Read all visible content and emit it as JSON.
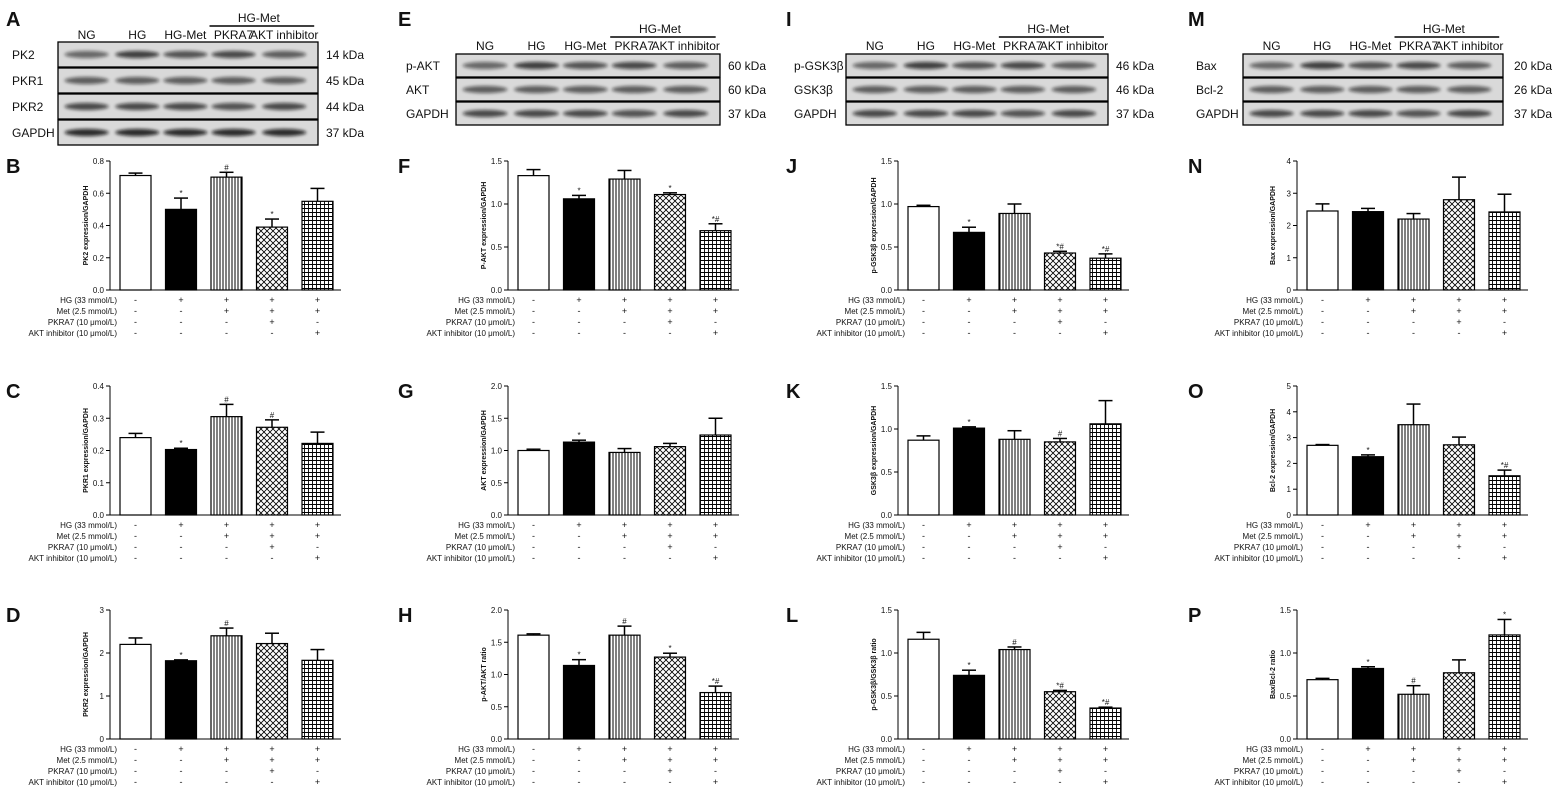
{
  "lanes": [
    "NG",
    "HG",
    "HG-Met",
    "PKRA7",
    "AKT inhibitor"
  ],
  "group_label": "HG-Met",
  "conditions": [
    "HG (33 mmol/L)",
    "Met (2.5 mmol/L)",
    "PKRA7 (10 μmol/L)",
    "AKT inhibitor (10 μmol/L)"
  ],
  "condition_signs": [
    [
      "-",
      "+",
      "+",
      "+",
      "+"
    ],
    [
      "-",
      "-",
      "+",
      "+",
      "+"
    ],
    [
      "-",
      "-",
      "-",
      "+",
      "-"
    ],
    [
      "-",
      "-",
      "-",
      "-",
      "+"
    ]
  ],
  "blots": [
    {
      "letter": "A",
      "rows": [
        {
          "label": "PK2",
          "kda": "14 kDa"
        },
        {
          "label": "PKR1",
          "kda": "45 kDa"
        },
        {
          "label": "PKR2",
          "kda": "44 kDa"
        },
        {
          "label": "GAPDH",
          "kda": "37 kDa"
        }
      ]
    },
    {
      "letter": "E",
      "rows": [
        {
          "label": "p-AKT",
          "kda": "60 kDa"
        },
        {
          "label": "AKT",
          "kda": "60 kDa"
        },
        {
          "label": "GAPDH",
          "kda": "37 kDa"
        }
      ]
    },
    {
      "letter": "I",
      "rows": [
        {
          "label": "p-GSK3β",
          "kda": "46 kDa"
        },
        {
          "label": "GSK3β",
          "kda": "46 kDa"
        },
        {
          "label": "GAPDH",
          "kda": "37 kDa"
        }
      ]
    },
    {
      "letter": "M",
      "rows": [
        {
          "label": "Bax",
          "kda": "20 kDa"
        },
        {
          "label": "Bcl-2",
          "kda": "26 kDa"
        },
        {
          "label": "GAPDH",
          "kda": "37 kDa"
        }
      ]
    }
  ],
  "chart_data": [
    {
      "panel": "B",
      "type": "bar",
      "categories": [
        "NG",
        "HG",
        "HG-Met",
        "PKRA7",
        "AKT inhibitor"
      ],
      "ylabel": "PK2 expression/GAPDH",
      "ylim": [
        0,
        0.8
      ],
      "yticks": [
        "0.0",
        "0.2",
        "0.4",
        "0.6",
        "0.8"
      ],
      "values": [
        0.71,
        0.5,
        0.7,
        0.39,
        0.55
      ],
      "errors": [
        0.015,
        0.07,
        0.03,
        0.05,
        0.08
      ],
      "annotations": [
        "",
        "*",
        "#",
        "*",
        ""
      ]
    },
    {
      "panel": "F",
      "type": "bar",
      "categories": [
        "NG",
        "HG",
        "HG-Met",
        "PKRA7",
        "AKT inhibitor"
      ],
      "ylabel": "P-AKT expression/GAPDH",
      "ylim": [
        0,
        1.5
      ],
      "yticks": [
        "0.0",
        "0.5",
        "1.0",
        "1.5"
      ],
      "values": [
        1.33,
        1.06,
        1.29,
        1.11,
        0.69
      ],
      "errors": [
        0.07,
        0.04,
        0.1,
        0.02,
        0.08
      ],
      "annotations": [
        "",
        "*",
        "",
        "*",
        "*#"
      ]
    },
    {
      "panel": "J",
      "type": "bar",
      "categories": [
        "NG",
        "HG",
        "HG-Met",
        "PKRA7",
        "AKT inhibitor"
      ],
      "ylabel": "p-GSK3β expression/GAPDH",
      "ylim": [
        0,
        1.5
      ],
      "yticks": [
        "0.0",
        "0.5",
        "1.0",
        "1.5"
      ],
      "values": [
        0.97,
        0.67,
        0.89,
        0.43,
        0.37
      ],
      "errors": [
        0.015,
        0.06,
        0.11,
        0.02,
        0.05
      ],
      "annotations": [
        "",
        "*",
        "",
        "*#",
        "*#"
      ]
    },
    {
      "panel": "N",
      "type": "bar",
      "categories": [
        "NG",
        "HG",
        "HG-Met",
        "PKRA7",
        "AKT inhibitor"
      ],
      "ylabel": "Bax expression/GAPDH",
      "ylim": [
        0,
        4
      ],
      "yticks": [
        "0",
        "1",
        "2",
        "3",
        "4"
      ],
      "values": [
        2.45,
        2.43,
        2.2,
        2.8,
        2.42
      ],
      "errors": [
        0.22,
        0.1,
        0.17,
        0.7,
        0.55
      ],
      "annotations": [
        "",
        "",
        "",
        "",
        ""
      ]
    },
    {
      "panel": "C",
      "type": "bar",
      "categories": [
        "NG",
        "HG",
        "HG-Met",
        "PKRA7",
        "AKT inhibitor"
      ],
      "ylabel": "PKR1 expression/GAPDH",
      "ylim": [
        0,
        0.4
      ],
      "yticks": [
        "0.0",
        "0.1",
        "0.2",
        "0.3",
        "0.4"
      ],
      "values": [
        0.24,
        0.203,
        0.305,
        0.272,
        0.222
      ],
      "errors": [
        0.013,
        0.004,
        0.038,
        0.023,
        0.035
      ],
      "annotations": [
        "",
        "*",
        "#",
        "#",
        ""
      ]
    },
    {
      "panel": "G",
      "type": "bar",
      "categories": [
        "NG",
        "HG",
        "HG-Met",
        "PKRA7",
        "AKT inhibitor"
      ],
      "ylabel": "AKT expression/GAPDH",
      "ylim": [
        0,
        2.0
      ],
      "yticks": [
        "0.0",
        "0.5",
        "1.0",
        "1.5",
        "2.0"
      ],
      "values": [
        1.0,
        1.13,
        0.97,
        1.06,
        1.24
      ],
      "errors": [
        0.02,
        0.03,
        0.06,
        0.05,
        0.26
      ],
      "annotations": [
        "",
        "*",
        "",
        "",
        ""
      ]
    },
    {
      "panel": "K",
      "type": "bar",
      "categories": [
        "NG",
        "HG",
        "HG-Met",
        "PKRA7",
        "AKT inhibitor"
      ],
      "ylabel": "GSK3β expression/GAPDH",
      "ylim": [
        0,
        1.5
      ],
      "yticks": [
        "0.0",
        "0.5",
        "1.0",
        "1.5"
      ],
      "values": [
        0.87,
        1.01,
        0.88,
        0.85,
        1.06
      ],
      "errors": [
        0.05,
        0.015,
        0.1,
        0.04,
        0.27
      ],
      "annotations": [
        "",
        "*",
        "",
        "#",
        ""
      ]
    },
    {
      "panel": "O",
      "type": "bar",
      "categories": [
        "NG",
        "HG",
        "HG-Met",
        "PKRA7",
        "AKT inhibitor"
      ],
      "ylabel": "Bcl-2 expression/GAPDH",
      "ylim": [
        0,
        5
      ],
      "yticks": [
        "0",
        "1",
        "2",
        "3",
        "4",
        "5"
      ],
      "values": [
        2.7,
        2.26,
        3.5,
        2.72,
        1.52
      ],
      "errors": [
        0.03,
        0.07,
        0.8,
        0.3,
        0.22
      ],
      "annotations": [
        "",
        "*",
        "",
        "",
        "*#"
      ]
    },
    {
      "panel": "D",
      "type": "bar",
      "categories": [
        "NG",
        "HG",
        "HG-Met",
        "PKRA7",
        "AKT inhibitor"
      ],
      "ylabel": "PKR2 expression/GAPDH",
      "ylim": [
        0,
        3
      ],
      "yticks": [
        "0",
        "1",
        "2",
        "3"
      ],
      "values": [
        2.2,
        1.82,
        2.4,
        2.22,
        1.83
      ],
      "errors": [
        0.15,
        0.02,
        0.18,
        0.24,
        0.25
      ],
      "annotations": [
        "",
        "*",
        "#",
        "",
        ""
      ]
    },
    {
      "panel": "H",
      "type": "bar",
      "categories": [
        "NG",
        "HG",
        "HG-Met",
        "PKRA7",
        "AKT inhibitor"
      ],
      "ylabel": "p-AKT/AKT ratio",
      "ylim": [
        0,
        2.0
      ],
      "yticks": [
        "0.0",
        "0.5",
        "1.0",
        "1.5",
        "2.0"
      ],
      "values": [
        1.61,
        1.14,
        1.61,
        1.27,
        0.72
      ],
      "errors": [
        0.02,
        0.09,
        0.14,
        0.06,
        0.1
      ],
      "annotations": [
        "",
        "*",
        "#",
        "*",
        "*#"
      ]
    },
    {
      "panel": "L",
      "type": "bar",
      "categories": [
        "NG",
        "HG",
        "HG-Met",
        "PKRA7",
        "AKT inhibitor"
      ],
      "ylabel": "p-GSK3β/GSK3β ratio",
      "ylim": [
        0,
        1.5
      ],
      "yticks": [
        "0.0",
        "0.5",
        "1.0",
        "1.5"
      ],
      "values": [
        1.16,
        0.74,
        1.04,
        0.55,
        0.36
      ],
      "errors": [
        0.08,
        0.06,
        0.03,
        0.015,
        0.01
      ],
      "annotations": [
        "",
        "*",
        "#",
        "*#",
        "*#"
      ]
    },
    {
      "panel": "P",
      "type": "bar",
      "categories": [
        "NG",
        "HG",
        "HG-Met",
        "PKRA7",
        "AKT inhibitor"
      ],
      "ylabel": "Bax/Bcl-2 ratio",
      "ylim": [
        0,
        1.5
      ],
      "yticks": [
        "0.0",
        "0.5",
        "1.0",
        "1.5"
      ],
      "values": [
        0.69,
        0.82,
        0.52,
        0.77,
        1.21
      ],
      "errors": [
        0.015,
        0.02,
        0.1,
        0.15,
        0.18
      ],
      "annotations": [
        "",
        "*",
        "#",
        "",
        "*"
      ]
    }
  ]
}
